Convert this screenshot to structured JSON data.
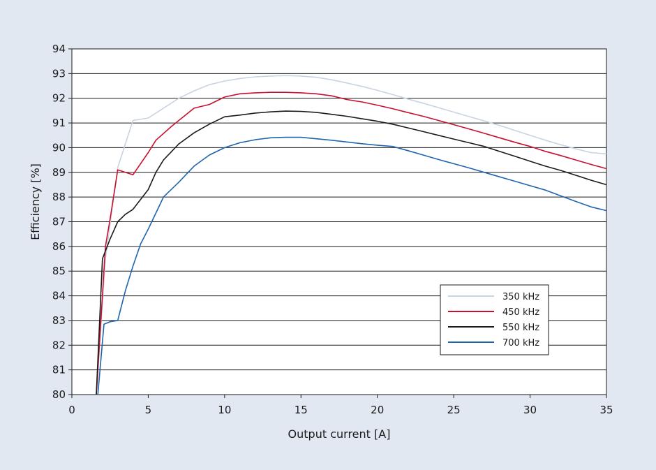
{
  "chart_data": {
    "type": "line",
    "title": "",
    "xlabel": "Output current [A]",
    "ylabel": "Efficiency [%]",
    "xlim": [
      0,
      35
    ],
    "ylim": [
      80,
      94
    ],
    "xticks": [
      0,
      5,
      10,
      15,
      20,
      25,
      30,
      35
    ],
    "yticks": [
      80,
      81,
      82,
      83,
      84,
      85,
      86,
      87,
      88,
      89,
      90,
      91,
      92,
      93,
      94
    ],
    "grid": "horizontal",
    "legend_position": "lower-right",
    "series": [
      {
        "name": "350 kHz",
        "color": "#c8d3e3",
        "points": [
          [
            1.6,
            80
          ],
          [
            2.2,
            85.5
          ],
          [
            3,
            89.2
          ],
          [
            4,
            91.1
          ],
          [
            5,
            91.2
          ],
          [
            6,
            91.6
          ],
          [
            7,
            92
          ],
          [
            8,
            92.3
          ],
          [
            9,
            92.55
          ],
          [
            10,
            92.7
          ],
          [
            11,
            92.8
          ],
          [
            12,
            92.87
          ],
          [
            13,
            92.9
          ],
          [
            14,
            92.92
          ],
          [
            15,
            92.9
          ],
          [
            16,
            92.85
          ],
          [
            17,
            92.75
          ],
          [
            18,
            92.62
          ],
          [
            19,
            92.48
          ],
          [
            20,
            92.32
          ],
          [
            21,
            92.15
          ],
          [
            22,
            91.97
          ],
          [
            23,
            91.8
          ],
          [
            24,
            91.62
          ],
          [
            25,
            91.44
          ],
          [
            26,
            91.26
          ],
          [
            27,
            91.08
          ],
          [
            28,
            90.9
          ],
          [
            29,
            90.7
          ],
          [
            30,
            90.5
          ],
          [
            31,
            90.3
          ],
          [
            32,
            90.12
          ],
          [
            33,
            89.95
          ],
          [
            34,
            89.8
          ],
          [
            35,
            89.75
          ]
        ]
      },
      {
        "name": "450 kHz",
        "color": "#c8102e",
        "points": [
          [
            1.6,
            80
          ],
          [
            2.2,
            86
          ],
          [
            2.5,
            87.1
          ],
          [
            3,
            89.1
          ],
          [
            4,
            88.9
          ],
          [
            5,
            89.8
          ],
          [
            5.5,
            90.3
          ],
          [
            6.5,
            90.85
          ],
          [
            7,
            91.1
          ],
          [
            8,
            91.6
          ],
          [
            9,
            91.75
          ],
          [
            10,
            92.05
          ],
          [
            11,
            92.18
          ],
          [
            12,
            92.22
          ],
          [
            13,
            92.24
          ],
          [
            14,
            92.24
          ],
          [
            15,
            92.22
          ],
          [
            16,
            92.18
          ],
          [
            17,
            92.1
          ],
          [
            18,
            91.95
          ],
          [
            19,
            91.85
          ],
          [
            20,
            91.72
          ],
          [
            21,
            91.58
          ],
          [
            22,
            91.42
          ],
          [
            23,
            91.27
          ],
          [
            24,
            91.1
          ],
          [
            25,
            90.93
          ],
          [
            26,
            90.76
          ],
          [
            27,
            90.58
          ],
          [
            28,
            90.4
          ],
          [
            29,
            90.22
          ],
          [
            30,
            90.05
          ],
          [
            31,
            89.85
          ],
          [
            32,
            89.68
          ],
          [
            33,
            89.5
          ],
          [
            34,
            89.32
          ],
          [
            35,
            89.15
          ]
        ]
      },
      {
        "name": "550 kHz",
        "color": "#1a1a1a",
        "points": [
          [
            1.6,
            80
          ],
          [
            2,
            85.5
          ],
          [
            2.5,
            86.3
          ],
          [
            3,
            87
          ],
          [
            3.5,
            87.3
          ],
          [
            4,
            87.5
          ],
          [
            5,
            88.3
          ],
          [
            5.5,
            89
          ],
          [
            6,
            89.5
          ],
          [
            7,
            90.15
          ],
          [
            8,
            90.6
          ],
          [
            9,
            90.95
          ],
          [
            10,
            91.25
          ],
          [
            11,
            91.32
          ],
          [
            12,
            91.4
          ],
          [
            13,
            91.45
          ],
          [
            14,
            91.48
          ],
          [
            15,
            91.47
          ],
          [
            16,
            91.43
          ],
          [
            17,
            91.35
          ],
          [
            18,
            91.27
          ],
          [
            19,
            91.17
          ],
          [
            20,
            91.07
          ],
          [
            21,
            90.95
          ],
          [
            22,
            90.8
          ],
          [
            23,
            90.65
          ],
          [
            24,
            90.5
          ],
          [
            25,
            90.35
          ],
          [
            26,
            90.2
          ],
          [
            27,
            90.05
          ],
          [
            28,
            89.85
          ],
          [
            29,
            89.65
          ],
          [
            30,
            89.45
          ],
          [
            31,
            89.25
          ],
          [
            32,
            89.08
          ],
          [
            33,
            88.88
          ],
          [
            34,
            88.68
          ],
          [
            35,
            88.5
          ]
        ]
      },
      {
        "name": "700 kHz",
        "color": "#1f64ae",
        "points": [
          [
            1.7,
            80
          ],
          [
            2.1,
            82.85
          ],
          [
            2.5,
            82.95
          ],
          [
            3,
            83
          ],
          [
            3.5,
            84.2
          ],
          [
            4,
            85.2
          ],
          [
            4.5,
            86.1
          ],
          [
            5,
            86.7
          ],
          [
            6,
            88
          ],
          [
            7,
            88.6
          ],
          [
            8,
            89.25
          ],
          [
            9,
            89.7
          ],
          [
            10,
            90
          ],
          [
            11,
            90.2
          ],
          [
            12,
            90.32
          ],
          [
            13,
            90.4
          ],
          [
            14,
            90.42
          ],
          [
            15,
            90.42
          ],
          [
            16,
            90.36
          ],
          [
            17,
            90.3
          ],
          [
            18,
            90.23
          ],
          [
            19,
            90.16
          ],
          [
            20,
            90.1
          ],
          [
            21,
            90.05
          ],
          [
            22,
            89.88
          ],
          [
            23,
            89.7
          ],
          [
            24,
            89.52
          ],
          [
            25,
            89.35
          ],
          [
            26,
            89.18
          ],
          [
            27,
            89
          ],
          [
            28,
            88.82
          ],
          [
            29,
            88.64
          ],
          [
            30,
            88.46
          ],
          [
            31,
            88.28
          ],
          [
            32,
            88.05
          ],
          [
            33,
            87.82
          ],
          [
            34,
            87.6
          ],
          [
            35,
            87.45
          ]
        ]
      }
    ]
  }
}
